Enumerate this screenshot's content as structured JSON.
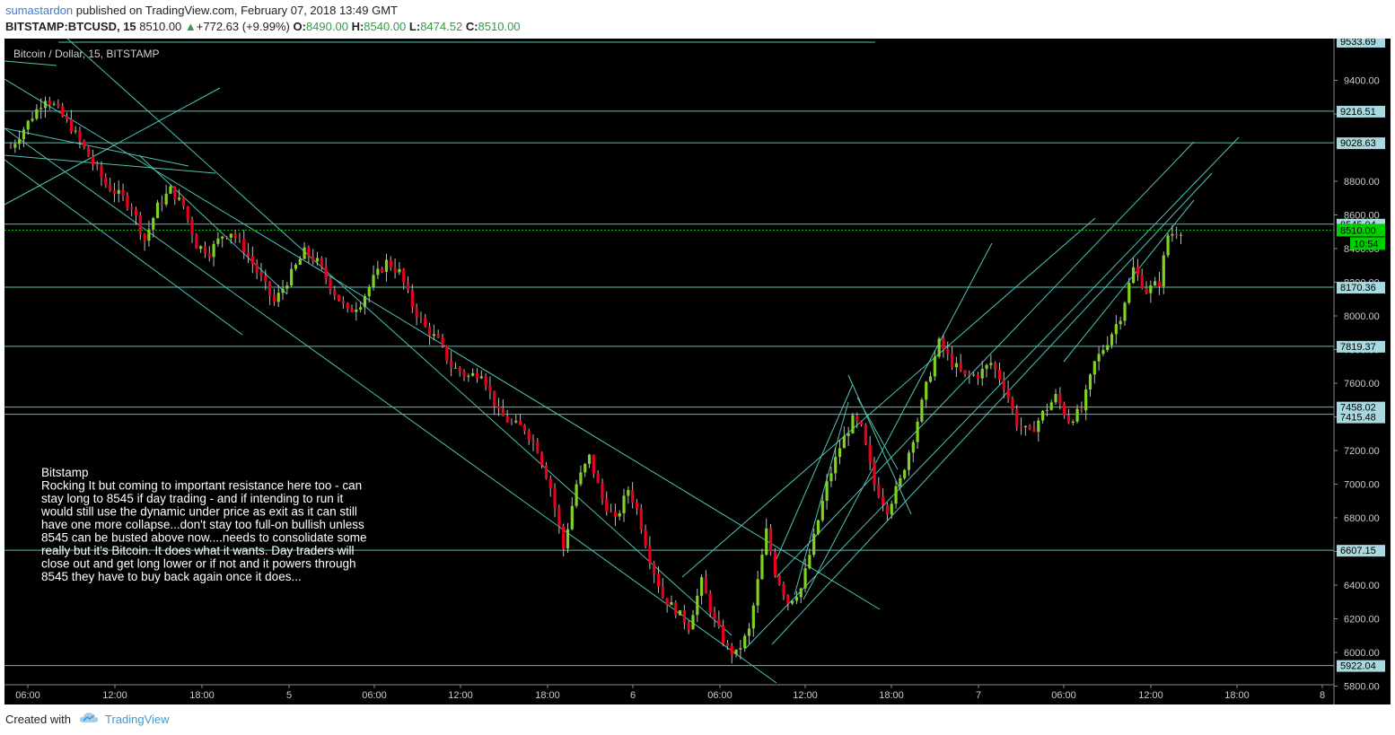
{
  "header": {
    "author": "sumastardon",
    "published": "published on TradingView.com, February 07, 2018 13:49 GMT",
    "symbol": "BITSTAMP:BTCUSD, 15",
    "price": "8510.00",
    "change": "+772.63 (+9.99%)",
    "o_label": "O:",
    "o_value": "8490.00",
    "h_label": "H:",
    "h_value": "8540.00",
    "l_label": "L:",
    "l_value": "8474.52",
    "c_label": "C:",
    "c_value": "8510.00"
  },
  "chart_title": "Bitcoin / Dollar, 15, BITSTAMP",
  "annotation": {
    "title": "Bitstamp",
    "lines": [
      "Rocking It but coming to important resistance here too - can",
      "stay long to 8545 if day trading - and if intending to run it",
      "would still use the dynamic under price as exit as it can still",
      "have one more collapse...don't stay too full-on bullish unless",
      "8545 can be busted above now....needs to consolidate some",
      "really but it's Bitcoin. It does what it wants. Day traders will",
      "close out and get long lower or if not and it powers through",
      "8545 they have to buy back again once it does..."
    ]
  },
  "footer": {
    "created": "Created with",
    "brand": "TradingView"
  },
  "colors": {
    "background": "#000000",
    "up": "#7ed321",
    "down": "#e8001c",
    "line": "#4fc3b3",
    "price": "#00d000"
  },
  "chart_data": {
    "type": "candlestick",
    "title": "Bitcoin / Dollar, 15, BITSTAMP",
    "x_ticks": [
      "06:00",
      "12:00",
      "18:00",
      "5",
      "06:00",
      "12:00",
      "18:00",
      "6",
      "06:00",
      "12:00",
      "18:00",
      "7",
      "06:00",
      "12:00",
      "18:00",
      "8"
    ],
    "y_ticks": [
      "9400.00",
      "9200.00",
      "8800.00",
      "8600.00",
      "8400.00",
      "8200.00",
      "8000.00",
      "7800.00",
      "7600.00",
      "7400.00",
      "7200.00",
      "7000.00",
      "6800.00",
      "6600.00",
      "6400.00",
      "6200.00",
      "6000.00",
      "5800.00"
    ],
    "ylim": [
      5720,
      9560
    ],
    "level_labels": [
      {
        "label": "9533.69",
        "value": 9533.69
      },
      {
        "label": "9216.51",
        "value": 9216.51
      },
      {
        "label": "9028.63",
        "value": 9028.63
      },
      {
        "label": "8545.04",
        "value": 8545.04
      },
      {
        "label": "8170.36",
        "value": 8170.36
      },
      {
        "label": "7819.37",
        "value": 7819.37
      },
      {
        "label": "7458.02",
        "value": 7458.02
      },
      {
        "label": "7415.48",
        "value": 7415.48
      },
      {
        "label": "6607.15",
        "value": 6607.15
      },
      {
        "label": "5922.04",
        "value": 5922.04
      }
    ],
    "last_price": {
      "label": "8510.00",
      "value": 8510
    },
    "countdown": "10:54",
    "close_path": [
      [
        0,
        9000
      ],
      [
        4,
        9150
      ],
      [
        8,
        9300
      ],
      [
        10,
        9250
      ],
      [
        14,
        9120
      ],
      [
        18,
        8950
      ],
      [
        22,
        8780
      ],
      [
        26,
        8700
      ],
      [
        28,
        8650
      ],
      [
        31,
        8450
      ],
      [
        34,
        8650
      ],
      [
        37,
        8750
      ],
      [
        40,
        8650
      ],
      [
        43,
        8420
      ],
      [
        46,
        8380
      ],
      [
        49,
        8480
      ],
      [
        51,
        8500
      ],
      [
        54,
        8400
      ],
      [
        58,
        8220
      ],
      [
        61,
        8080
      ],
      [
        65,
        8250
      ],
      [
        68,
        8380
      ],
      [
        71,
        8320
      ],
      [
        74,
        8180
      ],
      [
        78,
        8020
      ],
      [
        81,
        8080
      ],
      [
        84,
        8220
      ],
      [
        87,
        8320
      ],
      [
        90,
        8260
      ],
      [
        93,
        8060
      ],
      [
        96,
        7930
      ],
      [
        99,
        7850
      ],
      [
        102,
        7700
      ],
      [
        106,
        7640
      ],
      [
        109,
        7670
      ],
      [
        113,
        7420
      ],
      [
        116,
        7360
      ],
      [
        119,
        7330
      ],
      [
        122,
        7210
      ],
      [
        125,
        6980
      ],
      [
        128,
        6620
      ],
      [
        131,
        7000
      ],
      [
        134,
        7160
      ],
      [
        137,
        6910
      ],
      [
        140,
        6780
      ],
      [
        143,
        6970
      ],
      [
        145,
        6850
      ],
      [
        148,
        6560
      ],
      [
        151,
        6330
      ],
      [
        154,
        6250
      ],
      [
        157,
        6160
      ],
      [
        160,
        6420
      ],
      [
        163,
        6180
      ],
      [
        166,
        6020
      ],
      [
        168,
        5990
      ],
      [
        171,
        6130
      ],
      [
        173,
        6420
      ],
      [
        175,
        6720
      ],
      [
        177,
        6480
      ],
      [
        180,
        6300
      ],
      [
        183,
        6380
      ],
      [
        186,
        6680
      ],
      [
        189,
        7000
      ],
      [
        192,
        7220
      ],
      [
        195,
        7380
      ],
      [
        197,
        7330
      ],
      [
        200,
        7000
      ],
      [
        203,
        6850
      ],
      [
        206,
        7020
      ],
      [
        209,
        7280
      ],
      [
        212,
        7580
      ],
      [
        215,
        7840
      ],
      [
        218,
        7720
      ],
      [
        221,
        7640
      ],
      [
        224,
        7650
      ],
      [
        227,
        7720
      ],
      [
        230,
        7590
      ],
      [
        233,
        7360
      ],
      [
        236,
        7300
      ],
      [
        239,
        7420
      ],
      [
        242,
        7520
      ],
      [
        245,
        7380
      ],
      [
        248,
        7440
      ],
      [
        251,
        7720
      ],
      [
        254,
        7850
      ],
      [
        257,
        8000
      ],
      [
        260,
        8280
      ],
      [
        263,
        8150
      ],
      [
        266,
        8200
      ],
      [
        268,
        8480
      ],
      [
        271,
        8510
      ]
    ]
  }
}
